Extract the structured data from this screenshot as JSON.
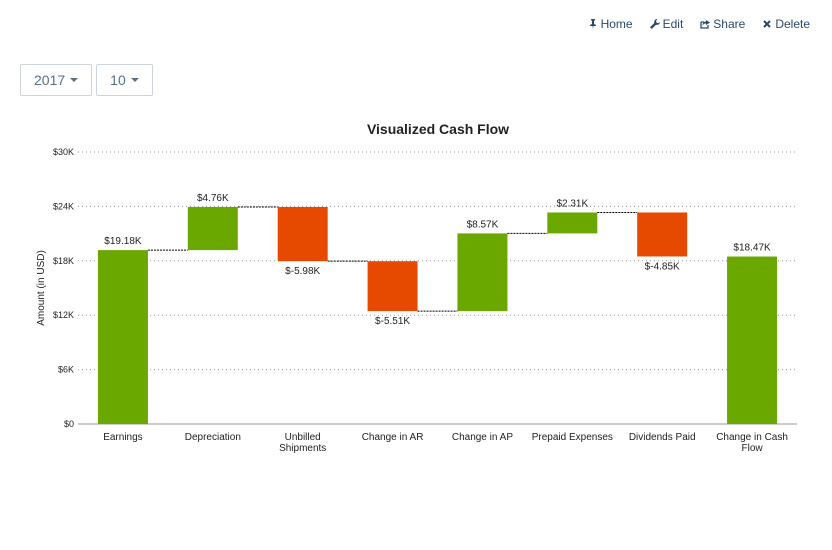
{
  "toolbar": {
    "links": [
      "Home",
      "Edit",
      "Share",
      "Delete"
    ],
    "filters": [
      "2017",
      "10"
    ]
  },
  "chart_data": {
    "type": "waterfall",
    "title": "Visualized Cash Flow",
    "y_label": "Amount (in USD)",
    "categories": [
      "Earnings",
      "Depreciation",
      "Unbilled Shipments",
      "Change in AR",
      "Change in AP",
      "Prepaid Expenses",
      "Dividends Paid",
      "Change in Cash Flow"
    ],
    "values": [
      19180,
      4760,
      -5980,
      -5510,
      8570,
      2310,
      -4850,
      18470
    ],
    "value_labels": [
      "$19.18K",
      "$4.76K",
      "$-5.98K",
      "$-5.51K",
      "$8.57K",
      "$2.31K",
      "$-4.85K",
      "$18.47K"
    ],
    "is_total": [
      false,
      false,
      false,
      false,
      false,
      false,
      false,
      true
    ],
    "positive_color": "#6aa800",
    "negative_color": "#e64a00",
    "ylim": [
      0,
      30000
    ],
    "yticks": [
      {
        "value": 0,
        "label": "$0"
      },
      {
        "value": 6000,
        "label": "$6K"
      },
      {
        "value": 12000,
        "label": "$12K"
      },
      {
        "value": 18000,
        "label": "$18K"
      },
      {
        "value": 24000,
        "label": "$24K"
      },
      {
        "value": 30000,
        "label": "$30K"
      }
    ],
    "grid": true
  }
}
